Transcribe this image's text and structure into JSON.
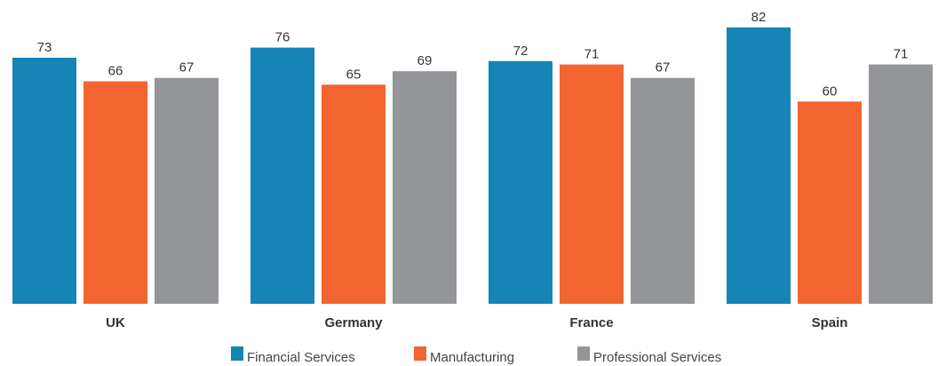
{
  "chart_data": {
    "type": "bar",
    "title": "",
    "xlabel": "",
    "ylabel": "",
    "ylim": [
      0,
      85
    ],
    "grid": false,
    "legend_position": "bottom-center",
    "categories": [
      "UK",
      "Germany",
      "France",
      "Spain"
    ],
    "series": [
      {
        "name": "Financial Services",
        "color": "#1585b5",
        "values": [
          73,
          76,
          72,
          82
        ]
      },
      {
        "name": "Manufacturing",
        "color": "#f26430",
        "values": [
          66,
          65,
          71,
          60
        ]
      },
      {
        "name": "Professional Services",
        "color": "#939598",
        "values": [
          67,
          69,
          67,
          71
        ]
      }
    ]
  }
}
